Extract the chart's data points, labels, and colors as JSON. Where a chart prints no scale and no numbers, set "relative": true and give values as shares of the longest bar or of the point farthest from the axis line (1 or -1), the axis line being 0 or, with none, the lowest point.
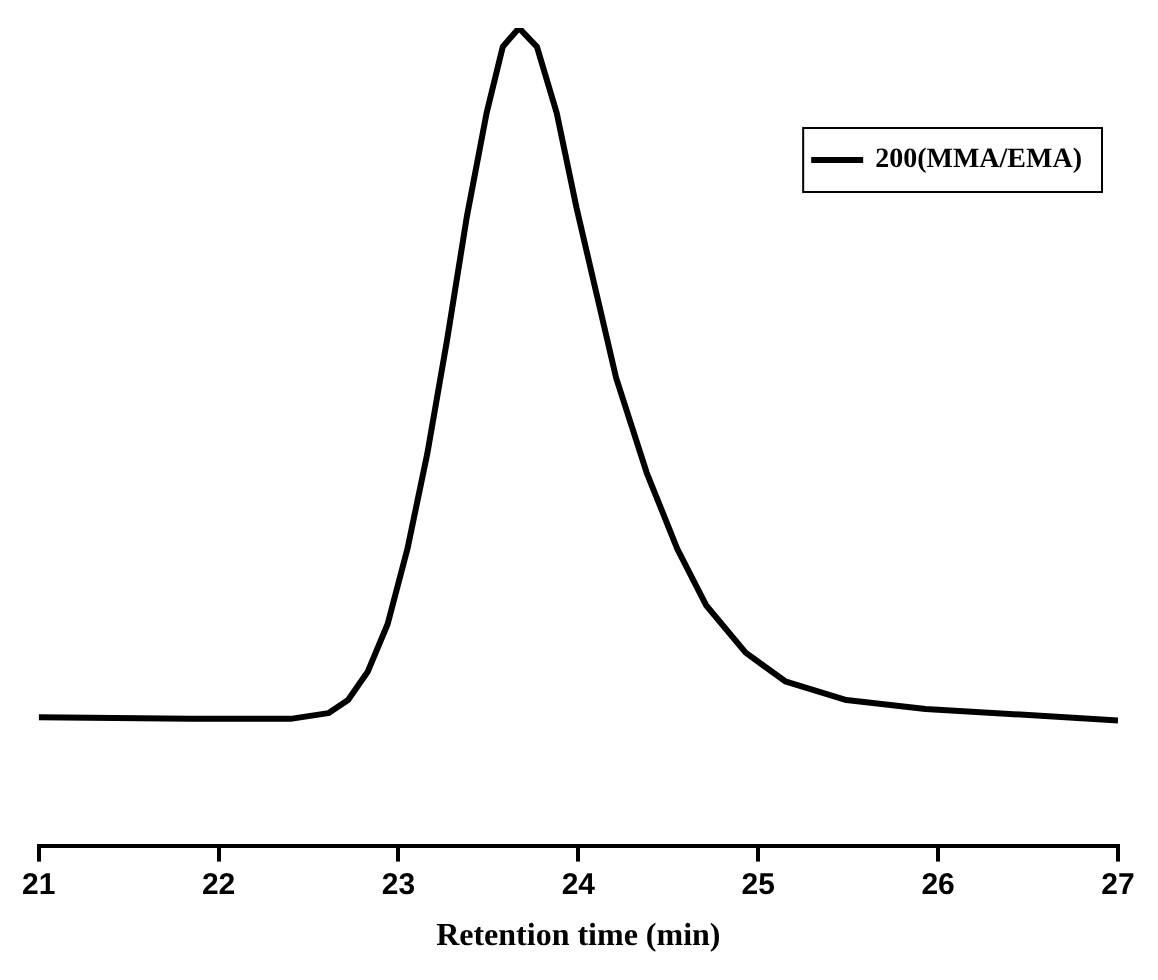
{
  "chart_data": {
    "type": "line",
    "xlabel": "Retention time (min)",
    "relative": true,
    "legend": "top right",
    "xlim": [
      21,
      27
    ],
    "xticks": [
      21,
      22,
      23,
      24,
      25,
      26,
      27
    ],
    "x": [
      21,
      21.84,
      22.4,
      22.61,
      22.72,
      22.83,
      22.94,
      23.05,
      23.16,
      23.27,
      23.38,
      23.49,
      23.58,
      23.67,
      23.77,
      23.88,
      23.99,
      24.1,
      24.21,
      24.38,
      24.55,
      24.71,
      24.93,
      25.15,
      25.49,
      25.93,
      26.48,
      27
    ],
    "series": [
      {
        "name": "200(MMA/EMA)",
        "color": "#000000",
        "values": [
          0.157,
          0.155,
          0.155,
          0.162,
          0.178,
          0.213,
          0.271,
          0.363,
          0.479,
          0.618,
          0.769,
          0.896,
          0.977,
          1,
          0.977,
          0.896,
          0.78,
          0.676,
          0.572,
          0.456,
          0.363,
          0.294,
          0.236,
          0.201,
          0.178,
          0.167,
          0.16,
          0.153
        ]
      }
    ]
  }
}
